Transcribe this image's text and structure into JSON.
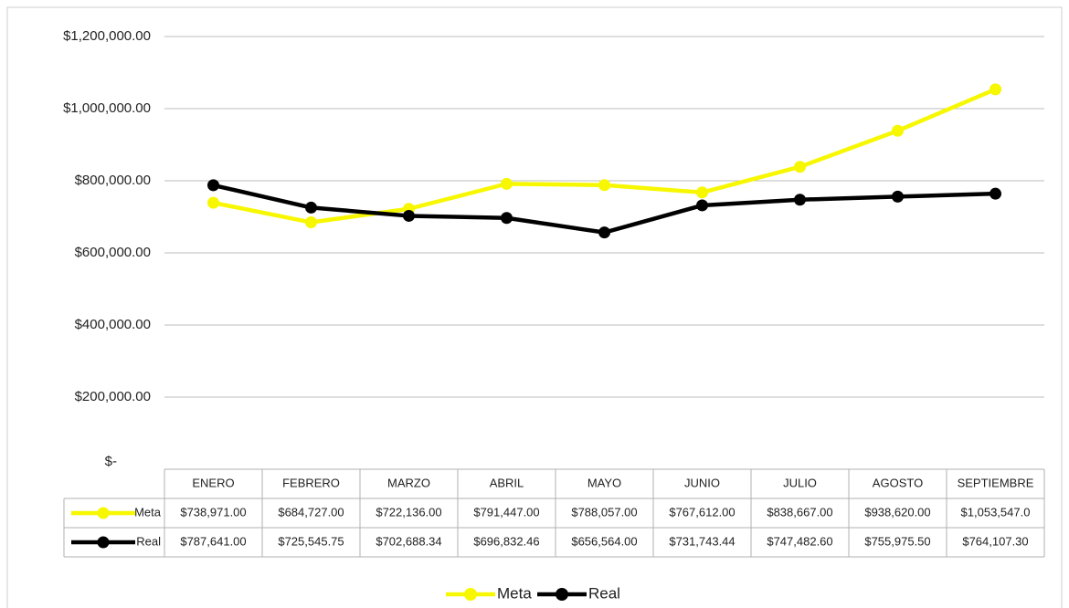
{
  "chart_data": {
    "type": "line",
    "categories": [
      "ENERO",
      "FEBRERO",
      "MARZO",
      "ABRIL",
      "MAYO",
      "JUNIO",
      "JULIO",
      "AGOSTO",
      "SEPTIEMBRE"
    ],
    "series": [
      {
        "name": "Meta",
        "color": "#f7f700",
        "values": [
          738971,
          684727,
          722136,
          791447,
          788057,
          767612,
          838667,
          938620,
          1053547
        ],
        "value_labels": [
          "$738,971.00",
          "$684,727.00",
          "$722,136.00",
          "$791,447.00",
          "$788,057.00",
          "$767,612.00",
          "$838,667.00",
          "$938,620.00",
          "$1,053,547.0"
        ]
      },
      {
        "name": "Real",
        "color": "#000000",
        "values": [
          787641,
          725545.75,
          702688.34,
          696832.46,
          656564,
          731743.44,
          747482.6,
          755975.5,
          764107.3
        ],
        "value_labels": [
          "$787,641.00",
          "$725,545.75",
          "$702,688.34",
          "$696,832.46",
          "$656,564.00",
          "$731,743.44",
          "$747,482.60",
          "$755,975.50",
          "$764,107.30"
        ]
      }
    ],
    "ylim": [
      0,
      1200000
    ],
    "yticks": [
      {
        "value": 0,
        "label": "$-"
      },
      {
        "value": 200000,
        "label": "$200,000.00"
      },
      {
        "value": 400000,
        "label": "$400,000.00"
      },
      {
        "value": 600000,
        "label": "$600,000.00"
      },
      {
        "value": 800000,
        "label": "$800,000.00"
      },
      {
        "value": 1000000,
        "label": "$1,000,000.00"
      },
      {
        "value": 1200000,
        "label": "$1,200,000.00"
      }
    ],
    "grid": true,
    "legend": "bottom"
  }
}
